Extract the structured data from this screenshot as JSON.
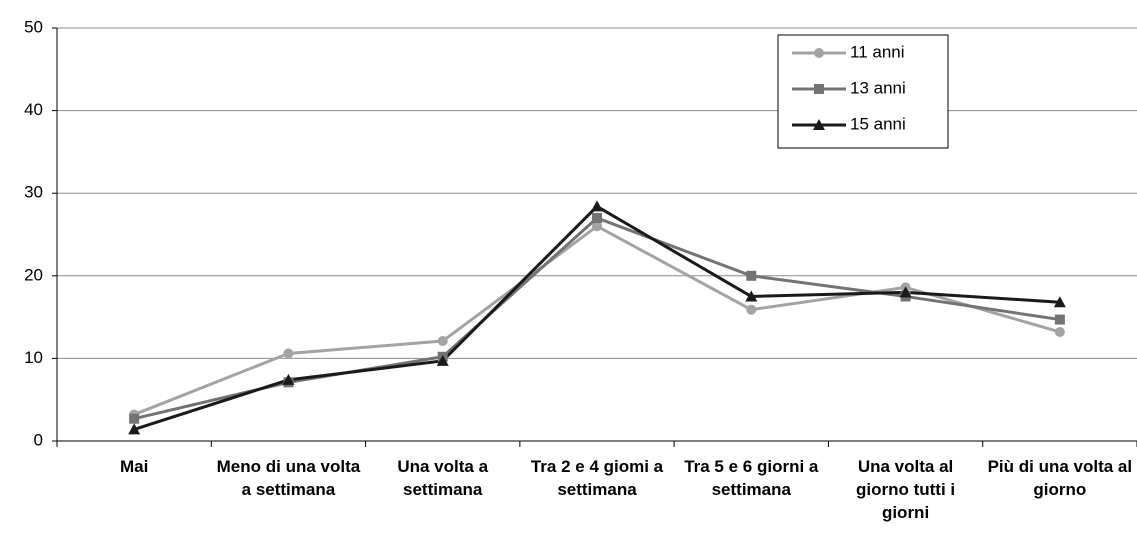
{
  "chart_data": {
    "type": "line",
    "categories": [
      "Mai",
      "Meno di una volta a settimana",
      "Una volta a settimana",
      "Tra 2 e 4 giomi a settimana",
      "Tra 5 e 6 giorni a settimana",
      "Una volta al giorno tutti i giorni",
      "Più di una volta al giorno"
    ],
    "series": [
      {
        "name": "11 anni",
        "color": "#a3a3a3",
        "marker": "circle",
        "values": [
          3.2,
          10.6,
          12.1,
          26.0,
          15.9,
          18.6,
          13.2
        ]
      },
      {
        "name": "13 anni",
        "color": "#737373",
        "marker": "square",
        "values": [
          2.7,
          7.1,
          10.2,
          27.0,
          20.0,
          17.5,
          14.7
        ]
      },
      {
        "name": "15 anni",
        "color": "#1a1a1a",
        "marker": "triangle",
        "values": [
          1.4,
          7.4,
          9.7,
          28.4,
          17.5,
          18.0,
          16.8
        ]
      }
    ],
    "ylim": [
      0,
      50
    ],
    "yticks": [
      0,
      10,
      20,
      30,
      40,
      50
    ],
    "grid": true,
    "legend": "upper right"
  }
}
